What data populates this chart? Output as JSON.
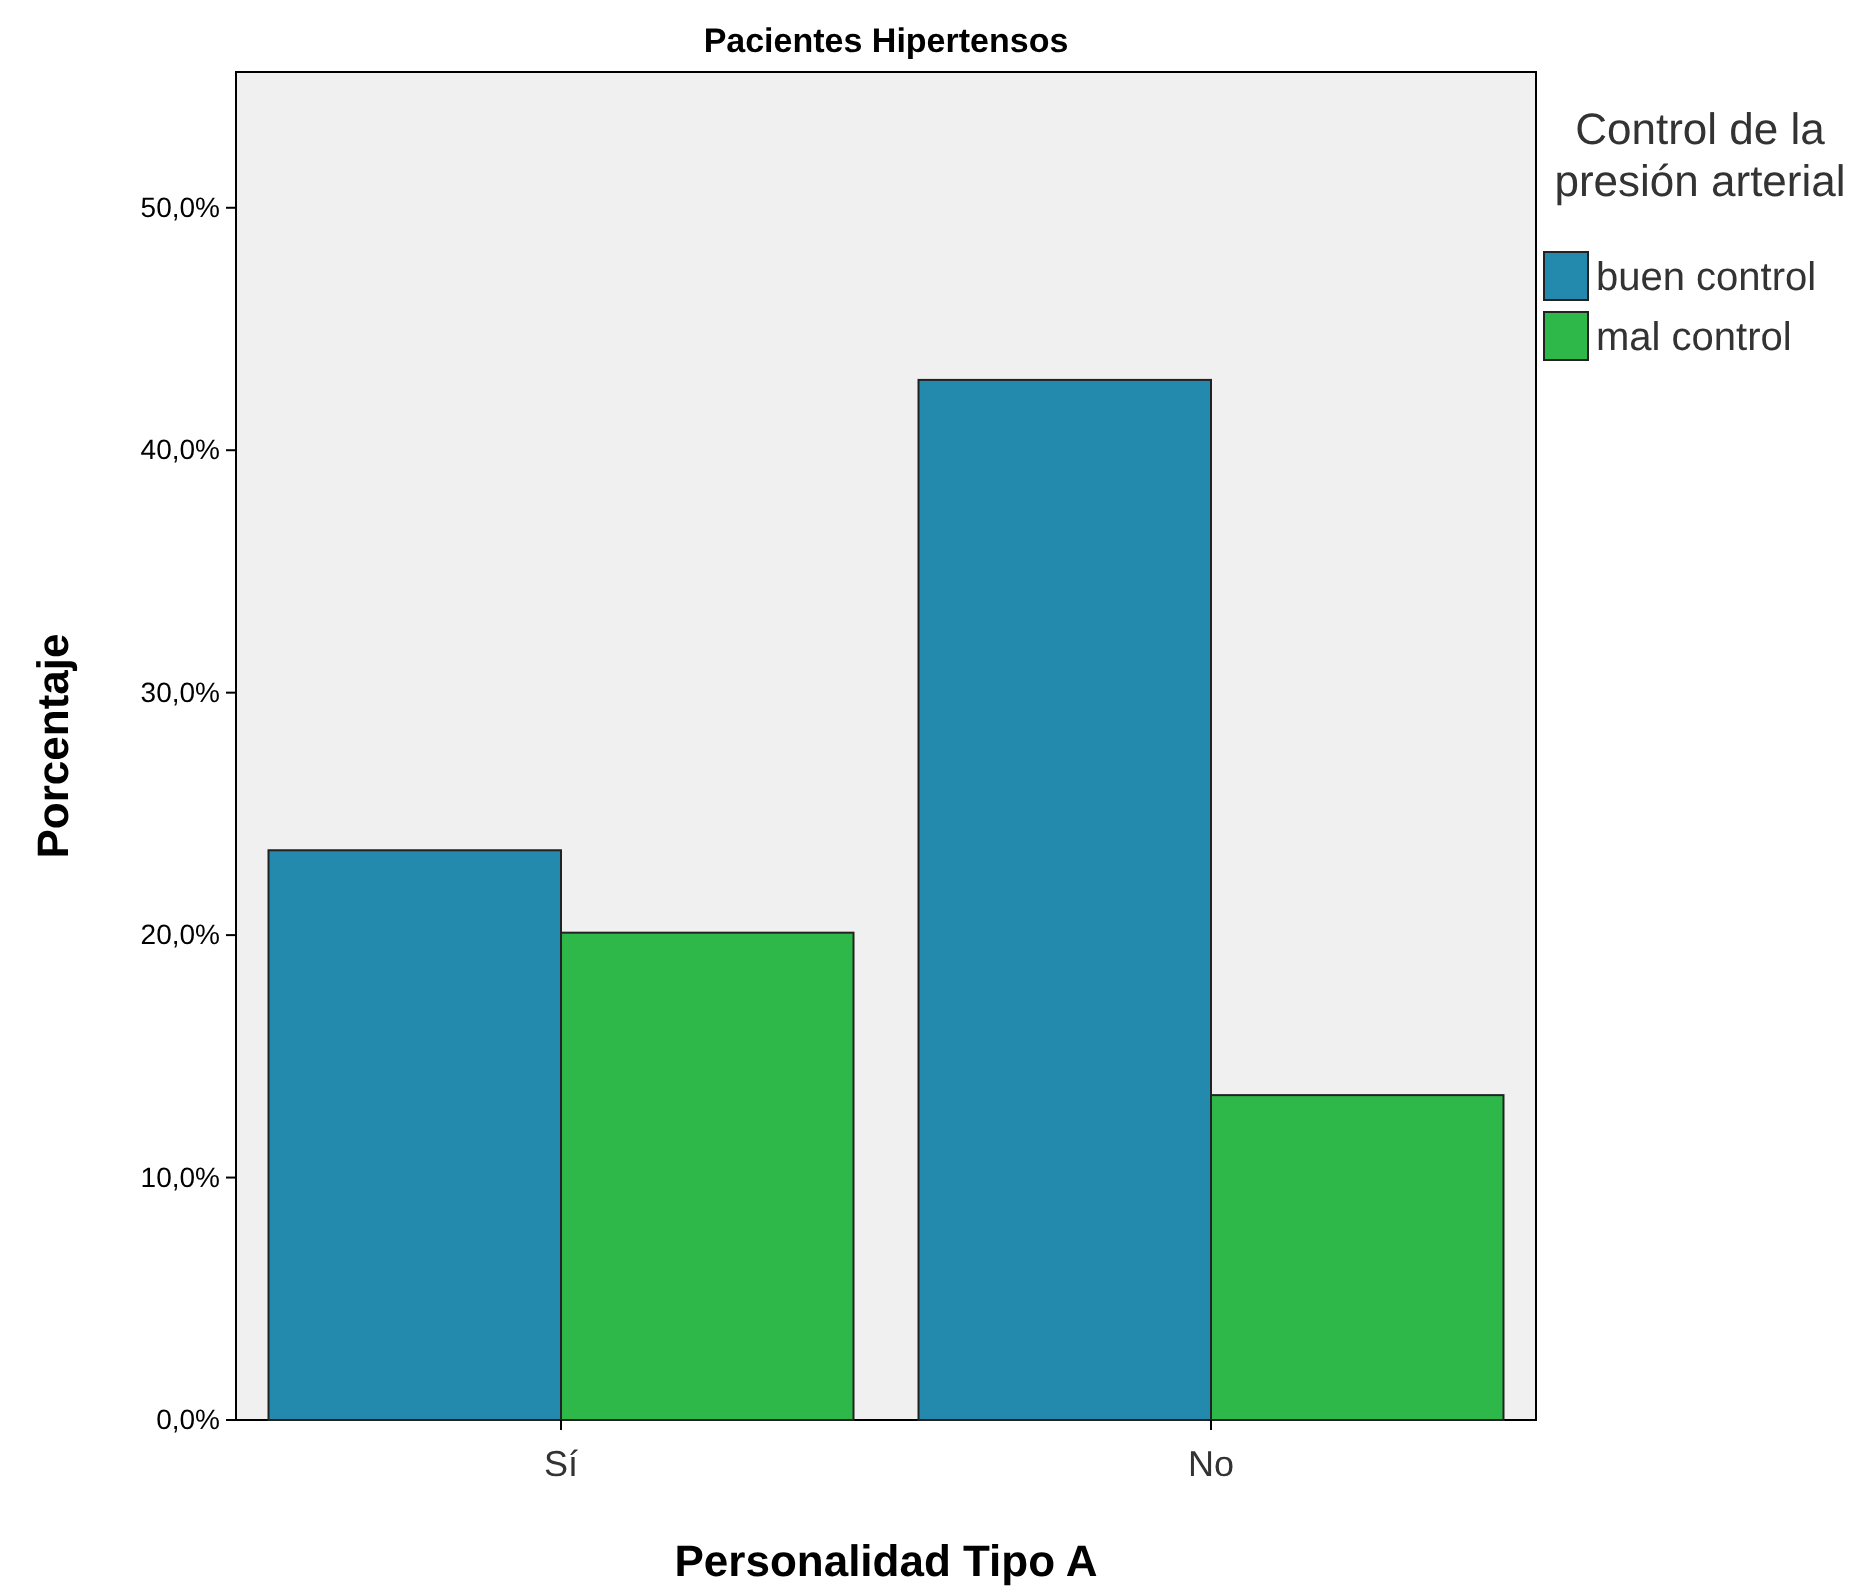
{
  "chart_data": {
    "type": "bar",
    "title": "Pacientes Hipertensos",
    "xlabel": "Personalidad Tipo A",
    "ylabel": "Porcentaje",
    "legend_title": "Control de la presión arterial",
    "categories": [
      "Sí",
      "No"
    ],
    "series": [
      {
        "name": "buen control",
        "color": "#2389ad",
        "values": [
          23.5,
          42.9
        ]
      },
      {
        "name": "mal control",
        "color": "#2fb84a",
        "values": [
          20.1,
          13.4
        ]
      }
    ],
    "ylim": [
      0,
      55.6
    ],
    "yticks": [
      {
        "value": 0,
        "label": "0,0%"
      },
      {
        "value": 10,
        "label": "10,0%"
      },
      {
        "value": 20,
        "label": "20,0%"
      },
      {
        "value": 30,
        "label": "30,0%"
      },
      {
        "value": 40,
        "label": "40,0%"
      },
      {
        "value": 50,
        "label": "50,0%"
      }
    ],
    "grid": false,
    "legend": "right"
  }
}
